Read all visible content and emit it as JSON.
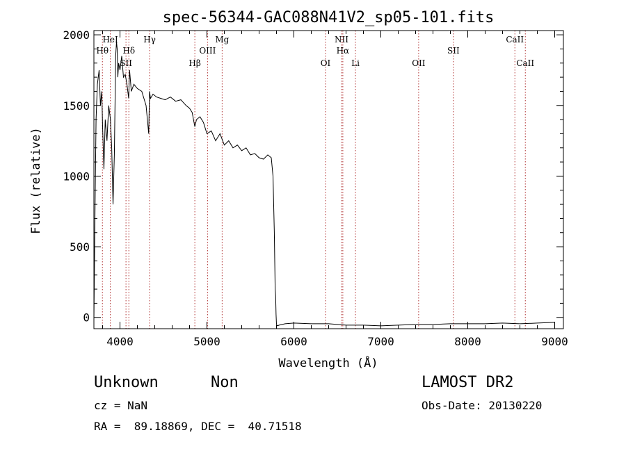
{
  "chart_data": {
    "type": "line",
    "title": "spec-56344-GAC088N41V2_sp05-101.fits",
    "xlabel": "Wavelength (Å)",
    "ylabel": "Flux (relative)",
    "xlim": [
      3700,
      9100
    ],
    "ylim": [
      -80,
      2030
    ],
    "x_ticks": [
      4000,
      5000,
      6000,
      7000,
      8000,
      9000
    ],
    "y_ticks": [
      0,
      500,
      1000,
      1500,
      2000
    ],
    "grid": false,
    "series": [
      {
        "x": [
          3700,
          3710,
          3725,
          3740,
          3760,
          3775,
          3790,
          3800,
          3815,
          3830,
          3850,
          3870,
          3890,
          3905,
          3920,
          3935,
          3950,
          3960,
          3968,
          3975,
          3985,
          4000,
          4020,
          4040,
          4060,
          4080,
          4100,
          4110,
          4130,
          4160,
          4200,
          4250,
          4300,
          4330,
          4340,
          4350,
          4380,
          4420,
          4470,
          4520,
          4580,
          4640,
          4700,
          4760,
          4800,
          4830,
          4861,
          4880,
          4920,
          4960,
          5000,
          5050,
          5100,
          5150,
          5200,
          5250,
          5300,
          5350,
          5400,
          5450,
          5500,
          5550,
          5600,
          5650,
          5700,
          5740,
          5760,
          5775,
          5785,
          5790,
          5795,
          5800,
          5810,
          5830,
          5900,
          6000,
          6200,
          6400,
          6600,
          6800,
          7000,
          7200,
          7400,
          7600,
          7800,
          8000,
          8200,
          8400,
          8600,
          8800,
          9000
        ],
        "values": [
          -20,
          620,
          1400,
          1650,
          1750,
          1500,
          1600,
          1350,
          1050,
          1400,
          1250,
          1500,
          1400,
          1200,
          800,
          1150,
          1850,
          1950,
          1900,
          1700,
          1800,
          1750,
          1850,
          1700,
          1720,
          1650,
          1550,
          1750,
          1600,
          1650,
          1620,
          1600,
          1500,
          1300,
          1600,
          1550,
          1580,
          1560,
          1550,
          1540,
          1560,
          1530,
          1540,
          1500,
          1480,
          1450,
          1350,
          1400,
          1420,
          1380,
          1300,
          1320,
          1250,
          1300,
          1220,
          1250,
          1200,
          1220,
          1180,
          1200,
          1150,
          1160,
          1130,
          1120,
          1150,
          1130,
          1000,
          600,
          200,
          150,
          20,
          -50,
          -60,
          -55,
          -45,
          -40,
          -45,
          -45,
          -55,
          -55,
          -60,
          -55,
          -50,
          -50,
          -45,
          -45,
          -45,
          -40,
          -45,
          -40,
          -35
        ]
      }
    ],
    "lines": [
      {
        "label": "Hθ",
        "x": 3798,
        "row": 1
      },
      {
        "label": "HeI",
        "x": 3889,
        "row": 0
      },
      {
        "label": "SII",
        "x": 4069,
        "row": 2
      },
      {
        "label": "Hδ",
        "x": 4102,
        "row": 1
      },
      {
        "label": "Hγ",
        "x": 4341,
        "row": 0
      },
      {
        "label": "Hβ",
        "x": 4861,
        "row": 2
      },
      {
        "label": "OIII",
        "x": 5007,
        "row": 1
      },
      {
        "label": "Mg",
        "x": 5175,
        "row": 0
      },
      {
        "label": "OI",
        "x": 6364,
        "row": 2
      },
      {
        "label": "NII",
        "x": 6548,
        "row": 0
      },
      {
        "label": "Hα",
        "x": 6563,
        "row": 1
      },
      {
        "label": "Li",
        "x": 6708,
        "row": 2
      },
      {
        "label": "OII",
        "x": 7435,
        "row": 2
      },
      {
        "label": "SII",
        "x": 7835,
        "row": 1
      },
      {
        "label": "CaII",
        "x": 8542,
        "row": 0
      },
      {
        "label": "CaII",
        "x": 8662,
        "row": 2
      }
    ]
  },
  "info": {
    "object_class": "Unknown",
    "subclass": "Non",
    "survey": "LAMOST DR2",
    "cz": "cz = NaN",
    "obs_date": "Obs-Date: 20130220",
    "coords": "RA =  89.18869, DEC =  40.71518"
  }
}
